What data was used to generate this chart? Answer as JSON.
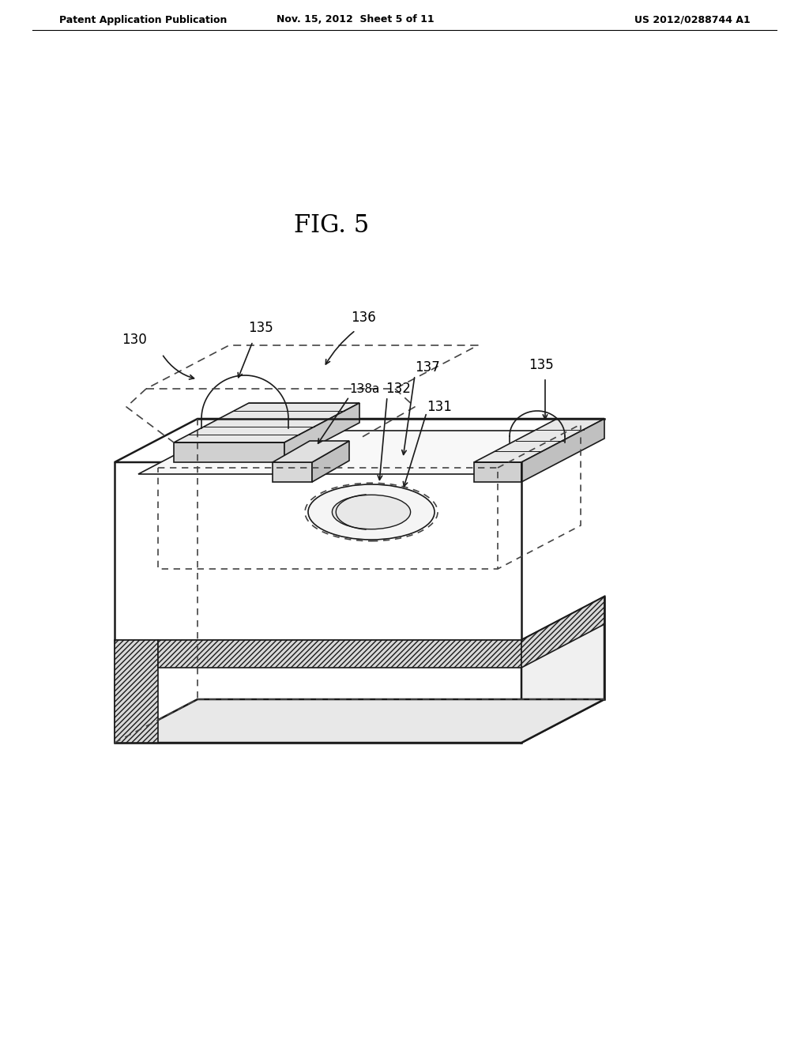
{
  "background_color": "#ffffff",
  "header_left": "Patent Application Publication",
  "header_center": "Nov. 15, 2012  Sheet 5 of 11",
  "header_right": "US 2012/0288744 A1",
  "fig_label": "FIG. 5",
  "lw_main": 1.8,
  "lw_thin": 1.2,
  "color_main": "#1a1a1a",
  "color_dashed": "#444444"
}
